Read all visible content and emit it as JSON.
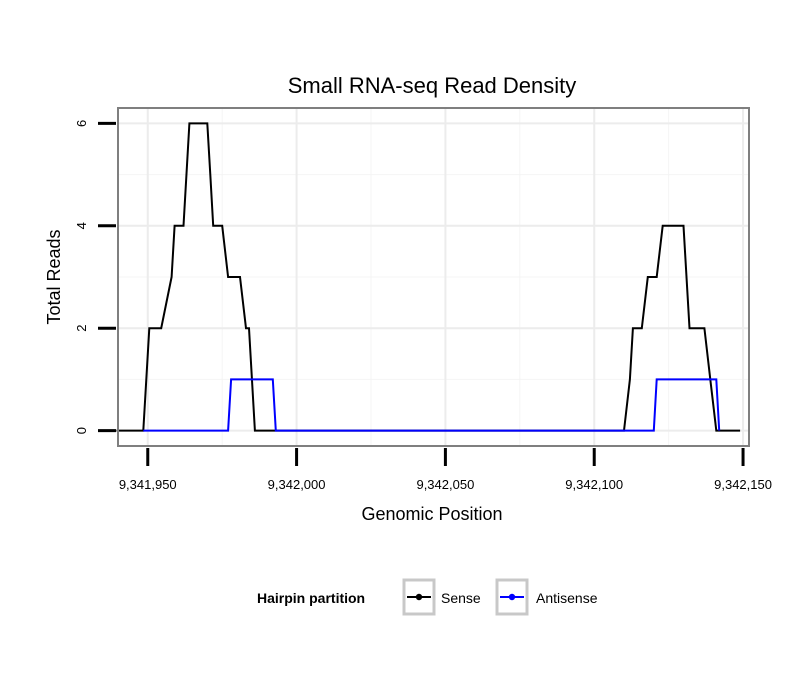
{
  "chart_data": {
    "type": "line",
    "title": "Small RNA-seq Read Density",
    "xlabel": "Genomic Position",
    "ylabel": "Total Reads",
    "xlim": [
      9341940,
      9342152
    ],
    "ylim": [
      -0.3,
      6.3
    ],
    "x_ticks": [
      9341950,
      9342000,
      9342050,
      9342100,
      9342150
    ],
    "x_tick_labels": [
      "9,341,950",
      "9,342,000",
      "9,342,050",
      "9,342,100",
      "9,342,150"
    ],
    "y_ticks": [
      0,
      2,
      4,
      6
    ],
    "y_tick_labels": [
      "0",
      "2",
      "4",
      "6"
    ],
    "grid": true,
    "legend": {
      "title": "Hairpin partition",
      "position": "bottom"
    },
    "series": [
      {
        "name": "Sense",
        "color": "#000000",
        "points": [
          [
            9341939.5,
            0
          ],
          [
            9341948.5,
            0
          ],
          [
            9341950.5,
            2
          ],
          [
            9341952.5,
            2
          ],
          [
            9341954.5,
            2
          ],
          [
            9341958,
            3
          ],
          [
            9341959,
            4
          ],
          [
            9341962,
            4
          ],
          [
            9341964,
            6
          ],
          [
            9341970,
            6
          ],
          [
            9341971,
            5
          ],
          [
            9341972,
            4
          ],
          [
            9341975,
            4
          ],
          [
            9341977,
            3
          ],
          [
            9341980,
            3
          ],
          [
            9341981,
            3
          ],
          [
            9341983,
            2
          ],
          [
            9341984,
            2
          ],
          [
            9341986,
            0
          ],
          [
            9342110,
            0
          ],
          [
            9342112,
            1
          ],
          [
            9342113,
            2
          ],
          [
            9342116,
            2
          ],
          [
            9342118,
            3
          ],
          [
            9342120,
            3
          ],
          [
            9342121,
            3
          ],
          [
            9342123,
            4
          ],
          [
            9342130,
            4
          ],
          [
            9342132,
            2
          ],
          [
            9342137,
            2
          ],
          [
            9342139,
            1
          ],
          [
            9342141,
            0
          ],
          [
            9342149,
            0
          ]
        ]
      },
      {
        "name": "Antisense",
        "color": "#0000ff",
        "points": [
          [
            9341948.5,
            0
          ],
          [
            9341970,
            0
          ],
          [
            9341977,
            0
          ],
          [
            9341978,
            1
          ],
          [
            9341992,
            1
          ],
          [
            9341993,
            0
          ],
          [
            9342120,
            0
          ],
          [
            9342121,
            1
          ],
          [
            9342141,
            1
          ],
          [
            9342142,
            0
          ]
        ]
      }
    ]
  }
}
